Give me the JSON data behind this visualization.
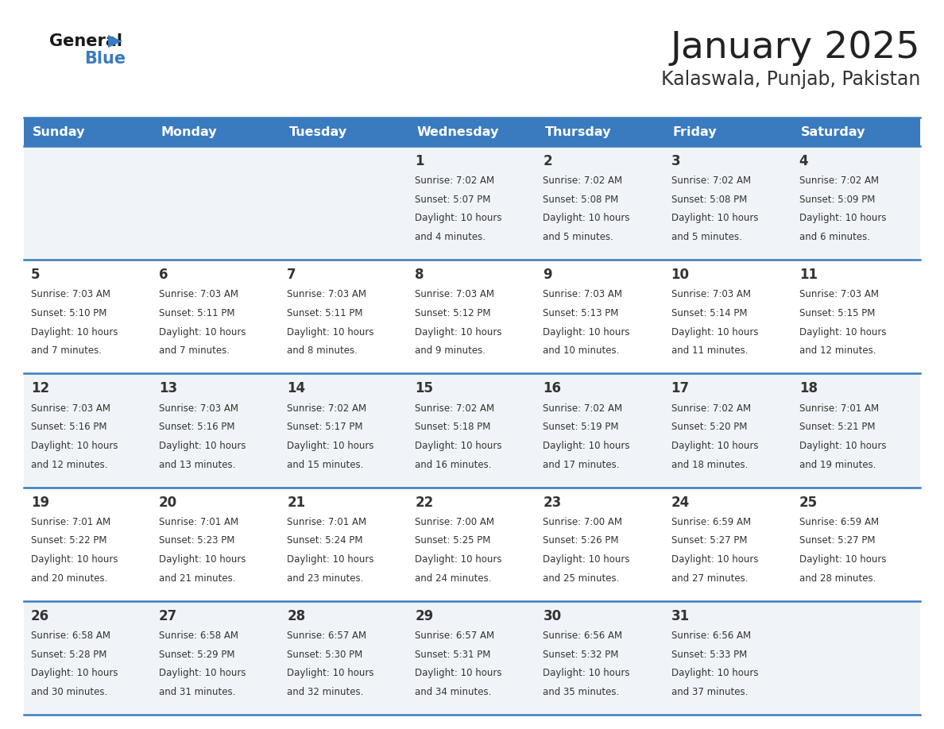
{
  "title": "January 2025",
  "subtitle": "Kalaswala, Punjab, Pakistan",
  "days_of_week": [
    "Sunday",
    "Monday",
    "Tuesday",
    "Wednesday",
    "Thursday",
    "Friday",
    "Saturday"
  ],
  "header_bg": "#3a7bbf",
  "header_text": "#ffffff",
  "cell_bg_odd": "#f0f4f8",
  "cell_bg_even": "#ffffff",
  "grid_line_color": "#3a7bbf",
  "text_color": "#333333",
  "title_color": "#222222",
  "subtitle_color": "#333333",
  "logo_general_color": "#1a1a1a",
  "logo_blue_color": "#3a7bbf",
  "calendar_data": [
    [
      null,
      null,
      null,
      {
        "day": 1,
        "sunrise": "7:02 AM",
        "sunset": "5:07 PM",
        "dl1": "Daylight: 10 hours",
        "dl2": "and 4 minutes."
      },
      {
        "day": 2,
        "sunrise": "7:02 AM",
        "sunset": "5:08 PM",
        "dl1": "Daylight: 10 hours",
        "dl2": "and 5 minutes."
      },
      {
        "day": 3,
        "sunrise": "7:02 AM",
        "sunset": "5:08 PM",
        "dl1": "Daylight: 10 hours",
        "dl2": "and 5 minutes."
      },
      {
        "day": 4,
        "sunrise": "7:02 AM",
        "sunset": "5:09 PM",
        "dl1": "Daylight: 10 hours",
        "dl2": "and 6 minutes."
      }
    ],
    [
      {
        "day": 5,
        "sunrise": "7:03 AM",
        "sunset": "5:10 PM",
        "dl1": "Daylight: 10 hours",
        "dl2": "and 7 minutes."
      },
      {
        "day": 6,
        "sunrise": "7:03 AM",
        "sunset": "5:11 PM",
        "dl1": "Daylight: 10 hours",
        "dl2": "and 7 minutes."
      },
      {
        "day": 7,
        "sunrise": "7:03 AM",
        "sunset": "5:11 PM",
        "dl1": "Daylight: 10 hours",
        "dl2": "and 8 minutes."
      },
      {
        "day": 8,
        "sunrise": "7:03 AM",
        "sunset": "5:12 PM",
        "dl1": "Daylight: 10 hours",
        "dl2": "and 9 minutes."
      },
      {
        "day": 9,
        "sunrise": "7:03 AM",
        "sunset": "5:13 PM",
        "dl1": "Daylight: 10 hours",
        "dl2": "and 10 minutes."
      },
      {
        "day": 10,
        "sunrise": "7:03 AM",
        "sunset": "5:14 PM",
        "dl1": "Daylight: 10 hours",
        "dl2": "and 11 minutes."
      },
      {
        "day": 11,
        "sunrise": "7:03 AM",
        "sunset": "5:15 PM",
        "dl1": "Daylight: 10 hours",
        "dl2": "and 12 minutes."
      }
    ],
    [
      {
        "day": 12,
        "sunrise": "7:03 AM",
        "sunset": "5:16 PM",
        "dl1": "Daylight: 10 hours",
        "dl2": "and 12 minutes."
      },
      {
        "day": 13,
        "sunrise": "7:03 AM",
        "sunset": "5:16 PM",
        "dl1": "Daylight: 10 hours",
        "dl2": "and 13 minutes."
      },
      {
        "day": 14,
        "sunrise": "7:02 AM",
        "sunset": "5:17 PM",
        "dl1": "Daylight: 10 hours",
        "dl2": "and 15 minutes."
      },
      {
        "day": 15,
        "sunrise": "7:02 AM",
        "sunset": "5:18 PM",
        "dl1": "Daylight: 10 hours",
        "dl2": "and 16 minutes."
      },
      {
        "day": 16,
        "sunrise": "7:02 AM",
        "sunset": "5:19 PM",
        "dl1": "Daylight: 10 hours",
        "dl2": "and 17 minutes."
      },
      {
        "day": 17,
        "sunrise": "7:02 AM",
        "sunset": "5:20 PM",
        "dl1": "Daylight: 10 hours",
        "dl2": "and 18 minutes."
      },
      {
        "day": 18,
        "sunrise": "7:01 AM",
        "sunset": "5:21 PM",
        "dl1": "Daylight: 10 hours",
        "dl2": "and 19 minutes."
      }
    ],
    [
      {
        "day": 19,
        "sunrise": "7:01 AM",
        "sunset": "5:22 PM",
        "dl1": "Daylight: 10 hours",
        "dl2": "and 20 minutes."
      },
      {
        "day": 20,
        "sunrise": "7:01 AM",
        "sunset": "5:23 PM",
        "dl1": "Daylight: 10 hours",
        "dl2": "and 21 minutes."
      },
      {
        "day": 21,
        "sunrise": "7:01 AM",
        "sunset": "5:24 PM",
        "dl1": "Daylight: 10 hours",
        "dl2": "and 23 minutes."
      },
      {
        "day": 22,
        "sunrise": "7:00 AM",
        "sunset": "5:25 PM",
        "dl1": "Daylight: 10 hours",
        "dl2": "and 24 minutes."
      },
      {
        "day": 23,
        "sunrise": "7:00 AM",
        "sunset": "5:26 PM",
        "dl1": "Daylight: 10 hours",
        "dl2": "and 25 minutes."
      },
      {
        "day": 24,
        "sunrise": "6:59 AM",
        "sunset": "5:27 PM",
        "dl1": "Daylight: 10 hours",
        "dl2": "and 27 minutes."
      },
      {
        "day": 25,
        "sunrise": "6:59 AM",
        "sunset": "5:27 PM",
        "dl1": "Daylight: 10 hours",
        "dl2": "and 28 minutes."
      }
    ],
    [
      {
        "day": 26,
        "sunrise": "6:58 AM",
        "sunset": "5:28 PM",
        "dl1": "Daylight: 10 hours",
        "dl2": "and 30 minutes."
      },
      {
        "day": 27,
        "sunrise": "6:58 AM",
        "sunset": "5:29 PM",
        "dl1": "Daylight: 10 hours",
        "dl2": "and 31 minutes."
      },
      {
        "day": 28,
        "sunrise": "6:57 AM",
        "sunset": "5:30 PM",
        "dl1": "Daylight: 10 hours",
        "dl2": "and 32 minutes."
      },
      {
        "day": 29,
        "sunrise": "6:57 AM",
        "sunset": "5:31 PM",
        "dl1": "Daylight: 10 hours",
        "dl2": "and 34 minutes."
      },
      {
        "day": 30,
        "sunrise": "6:56 AM",
        "sunset": "5:32 PM",
        "dl1": "Daylight: 10 hours",
        "dl2": "and 35 minutes."
      },
      {
        "day": 31,
        "sunrise": "6:56 AM",
        "sunset": "5:33 PM",
        "dl1": "Daylight: 10 hours",
        "dl2": "and 37 minutes."
      },
      null
    ]
  ]
}
